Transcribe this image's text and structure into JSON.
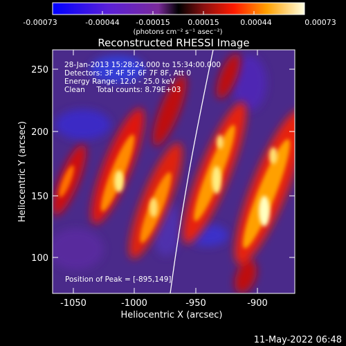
{
  "colorbar": {
    "ticks": [
      "-0.00073",
      "-0.00044",
      "-0.00015",
      "0.00015",
      "0.00044",
      "0.00073"
    ],
    "unit_label": "(photons cm⁻² s⁻¹ asec⁻²)"
  },
  "title": "Reconstructed RHESSI Image",
  "info": {
    "time": "28-Jan-2013 15:28:24.000 to 15:34:00.000",
    "detectors": "Detectors: 3F 4F 5F 6F 7F 8F, Att 0",
    "energy": "Energy Range: 12.0 - 25.0 keV",
    "clean": "Clean     Total counts: 8.79E+03"
  },
  "peak": "Position of Peak = [-895,149]",
  "axes": {
    "xlabel": "Heliocentric X (arcsec)",
    "ylabel": "Heliocentric Y (arcsec)",
    "xticks": [
      "-1050",
      "-1000",
      "-950",
      "-900"
    ],
    "yticks": [
      "250",
      "200",
      "150",
      "100"
    ]
  },
  "footer": "11-May-2022 06:48",
  "colors": {
    "background": "#000000",
    "frame": "#ffffff",
    "limb": "#ffffff"
  }
}
